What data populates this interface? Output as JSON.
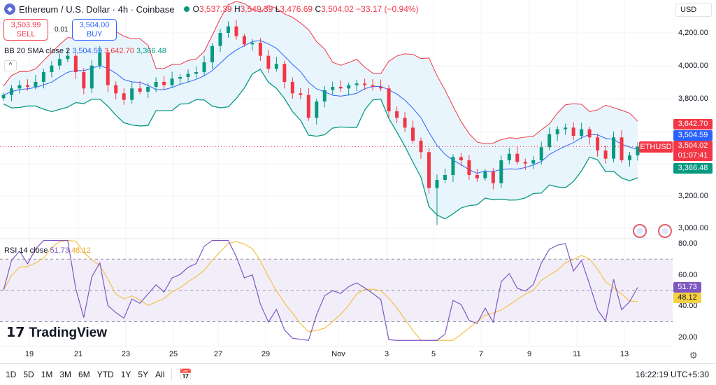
{
  "header": {
    "icon": "ethereum-icon",
    "title": "Ethereum / U.S. Dollar · 4h · Coinbase",
    "o_label": "O",
    "o": "3,537.39",
    "h_label": "H",
    "h": "3,549.39",
    "l_label": "L",
    "l": "3,476.69",
    "c_label": "C",
    "c": "3,504.02",
    "change": "−33.17 (−0.94%)"
  },
  "trade": {
    "sell_price": "3,503.99",
    "sell_label": "SELL",
    "spread": "0.01",
    "buy_price": "3,504.00",
    "buy_label": "BUY"
  },
  "bb": {
    "label": "BB 20 SMA close 2",
    "middle": "3,504.59",
    "upper": "3,642.70",
    "lower": "3,366.48"
  },
  "rsi": {
    "label": "RSI 14 close",
    "value": "51.73",
    "ma": "48.12"
  },
  "currency": "USD",
  "price_scale": [
    "4,200.00",
    "4,000.00",
    "3,800.00",
    "3,200.00",
    "3,000.00"
  ],
  "rsi_scale": [
    "80.00",
    "60.00",
    "40.00",
    "20.00"
  ],
  "tags": {
    "upper": "3,642.70",
    "middle": "3,504.59",
    "last": "3,504.02",
    "countdown": "01:07:41",
    "lower": "3,366.48",
    "symbol": "ETHUSD"
  },
  "x_axis": [
    "19",
    "21",
    "23",
    "25",
    "27",
    "29",
    "Nov",
    "3",
    "5",
    "7",
    "9",
    "11",
    "13"
  ],
  "ranges": [
    "1D",
    "5D",
    "1M",
    "3M",
    "6M",
    "YTD",
    "1Y",
    "5Y",
    "All"
  ],
  "clock": "16:22:19 UTC+5:30",
  "logo": "TradingView",
  "colors": {
    "up": "#089981",
    "down": "#f23645",
    "bb_mid": "#2962ff",
    "bb_upper": "#f23645",
    "bb_lower": "#089981",
    "rsi": "#7e57c2",
    "rsi_ma": "#f5c048"
  },
  "chart_data": {
    "type": "candlestick",
    "interval": "4h",
    "closes": [
      3820,
      3860,
      3880,
      3870,
      3900,
      3960,
      4000,
      4040,
      4060,
      3960,
      3860,
      4000,
      4080,
      3880,
      3830,
      3790,
      3860,
      3840,
      3870,
      3900,
      3880,
      3920,
      3930,
      3950,
      3960,
      4020,
      4120,
      4200,
      4240,
      4180,
      4130,
      4140,
      4060,
      3980,
      4010,
      3900,
      3830,
      3820,
      3680,
      3780,
      3850,
      3870,
      3860,
      3880,
      3890,
      3880,
      3870,
      3860,
      3720,
      3680,
      3620,
      3540,
      3470,
      3250,
      3300,
      3330,
      3440,
      3420,
      3330,
      3310,
      3350,
      3280,
      3420,
      3460,
      3410,
      3400,
      3420,
      3500,
      3580,
      3610,
      3620,
      3570,
      3610,
      3560,
      3480,
      3430,
      3560,
      3420,
      3450,
      3504
    ],
    "ylim": [
      2950,
      4300
    ],
    "rsi_ylim": [
      15,
      85
    ]
  }
}
